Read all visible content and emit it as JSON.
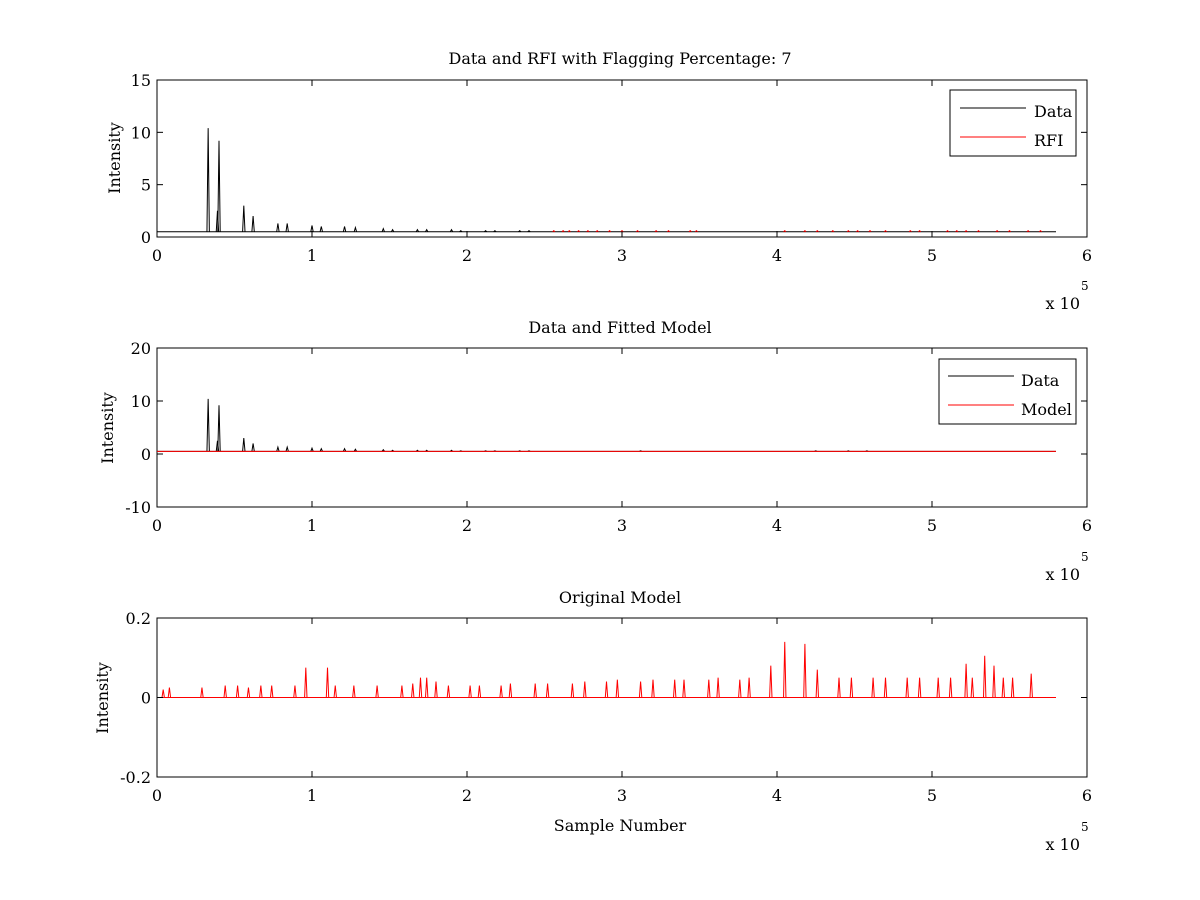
{
  "chart_data": [
    {
      "type": "line",
      "title": "Data and RFI with Flagging Percentage: 7",
      "xlabel": "",
      "ylabel": "Intensity",
      "xlim": [
        0,
        6
      ],
      "ylim": [
        0,
        15
      ],
      "xticks": [
        "0",
        "1",
        "2",
        "3",
        "4",
        "5",
        "6"
      ],
      "yticks": [
        "0",
        "5",
        "10",
        "15"
      ],
      "x_exponent": {
        "base": "x 10",
        "power": "5"
      },
      "legend": {
        "placement": "top-right",
        "entries": [
          "Data",
          "RFI"
        ]
      },
      "colors": {
        "Data": "#000000",
        "RFI": "#ff0000"
      },
      "series": [
        {
          "name": "Data",
          "baseline": 0.5,
          "peaks": [
            [
              0.33,
              10.4
            ],
            [
              0.4,
              9.2
            ],
            [
              0.39,
              2.5
            ],
            [
              0.56,
              3.0
            ],
            [
              0.62,
              2.0
            ],
            [
              0.78,
              1.3
            ],
            [
              0.84,
              1.3
            ],
            [
              1.0,
              1.1
            ],
            [
              1.06,
              1.0
            ],
            [
              1.21,
              1.0
            ],
            [
              1.28,
              0.9
            ],
            [
              1.46,
              0.8
            ],
            [
              1.52,
              0.7
            ],
            [
              1.68,
              0.7
            ],
            [
              1.74,
              0.7
            ],
            [
              1.9,
              0.7
            ],
            [
              1.96,
              0.6
            ],
            [
              2.12,
              0.6
            ],
            [
              2.18,
              0.6
            ],
            [
              2.34,
              0.6
            ],
            [
              2.4,
              0.6
            ]
          ]
        },
        {
          "name": "RFI",
          "baseline": 0.5,
          "peaks": [
            [
              2.56,
              0.6
            ],
            [
              2.62,
              0.6
            ],
            [
              2.66,
              0.6
            ],
            [
              2.72,
              0.6
            ],
            [
              2.78,
              0.6
            ],
            [
              2.84,
              0.6
            ],
            [
              2.92,
              0.6
            ],
            [
              3.0,
              0.6
            ],
            [
              3.1,
              0.6
            ],
            [
              3.22,
              0.6
            ],
            [
              3.3,
              0.6
            ],
            [
              3.44,
              0.6
            ],
            [
              3.48,
              0.6
            ],
            [
              4.05,
              0.6
            ],
            [
              4.18,
              0.6
            ],
            [
              4.26,
              0.6
            ],
            [
              4.36,
              0.6
            ],
            [
              4.46,
              0.6
            ],
            [
              4.52,
              0.6
            ],
            [
              4.6,
              0.6
            ],
            [
              4.7,
              0.6
            ],
            [
              4.86,
              0.6
            ],
            [
              4.92,
              0.6
            ],
            [
              5.1,
              0.6
            ],
            [
              5.16,
              0.6
            ],
            [
              5.22,
              0.6
            ],
            [
              5.3,
              0.6
            ],
            [
              5.42,
              0.6
            ],
            [
              5.5,
              0.6
            ],
            [
              5.62,
              0.6
            ],
            [
              5.7,
              0.6
            ]
          ]
        }
      ]
    },
    {
      "type": "line",
      "title": "Data and Fitted Model",
      "xlabel": "",
      "ylabel": "Intensity",
      "xlim": [
        0,
        6
      ],
      "ylim": [
        -10,
        20
      ],
      "xticks": [
        "0",
        "1",
        "2",
        "3",
        "4",
        "5",
        "6"
      ],
      "yticks": [
        "-10",
        "0",
        "10",
        "20"
      ],
      "x_exponent": {
        "base": "x 10",
        "power": "5"
      },
      "legend": {
        "placement": "top-right",
        "entries": [
          "Data",
          "Model"
        ]
      },
      "colors": {
        "Data": "#000000",
        "Model": "#ff0000"
      },
      "series": [
        {
          "name": "Data",
          "baseline": 0.5,
          "peaks": [
            [
              0.33,
              10.4
            ],
            [
              0.4,
              9.2
            ],
            [
              0.39,
              2.5
            ],
            [
              0.56,
              3.0
            ],
            [
              0.62,
              2.0
            ],
            [
              0.78,
              1.3
            ],
            [
              0.84,
              1.3
            ],
            [
              1.0,
              1.1
            ],
            [
              1.06,
              1.0
            ],
            [
              1.21,
              1.0
            ],
            [
              1.28,
              0.9
            ],
            [
              1.46,
              0.8
            ],
            [
              1.52,
              0.7
            ],
            [
              1.68,
              0.7
            ],
            [
              1.74,
              0.7
            ],
            [
              1.9,
              0.7
            ],
            [
              1.96,
              0.6
            ],
            [
              2.12,
              0.6
            ],
            [
              2.18,
              0.6
            ],
            [
              2.34,
              0.6
            ],
            [
              2.4,
              0.6
            ],
            [
              3.12,
              0.6
            ],
            [
              4.25,
              0.6
            ],
            [
              4.46,
              0.6
            ],
            [
              4.58,
              0.6
            ]
          ]
        },
        {
          "name": "Model",
          "baseline": 0.5,
          "peaks": []
        }
      ]
    },
    {
      "type": "line",
      "title": "Original Model",
      "xlabel": "Sample Number",
      "ylabel": "Intensity",
      "xlim": [
        0,
        6
      ],
      "ylim": [
        -0.2,
        0.2
      ],
      "xticks": [
        "0",
        "1",
        "2",
        "3",
        "4",
        "5",
        "6"
      ],
      "yticks": [
        "-0.2",
        "0",
        "0.2"
      ],
      "x_exponent": {
        "base": "x 10",
        "power": "5"
      },
      "colors": {
        "Model": "#ff0000"
      },
      "series": [
        {
          "name": "",
          "baseline": 0,
          "peaks": [
            [
              0.04,
              0.02
            ],
            [
              0.08,
              0.025
            ],
            [
              0.29,
              0.025
            ],
            [
              0.44,
              0.03
            ],
            [
              0.52,
              0.03
            ],
            [
              0.59,
              0.025
            ],
            [
              0.67,
              0.03
            ],
            [
              0.74,
              0.03
            ],
            [
              0.89,
              0.03
            ],
            [
              0.96,
              0.075
            ],
            [
              1.1,
              0.075
            ],
            [
              1.15,
              0.03
            ],
            [
              1.27,
              0.03
            ],
            [
              1.42,
              0.03
            ],
            [
              1.58,
              0.03
            ],
            [
              1.65,
              0.035
            ],
            [
              1.7,
              0.05
            ],
            [
              1.74,
              0.05
            ],
            [
              1.8,
              0.04
            ],
            [
              1.88,
              0.03
            ],
            [
              2.02,
              0.03
            ],
            [
              2.08,
              0.03
            ],
            [
              2.22,
              0.03
            ],
            [
              2.28,
              0.035
            ],
            [
              2.44,
              0.035
            ],
            [
              2.52,
              0.035
            ],
            [
              2.68,
              0.035
            ],
            [
              2.76,
              0.04
            ],
            [
              2.9,
              0.04
            ],
            [
              2.97,
              0.045
            ],
            [
              3.12,
              0.04
            ],
            [
              3.2,
              0.045
            ],
            [
              3.34,
              0.045
            ],
            [
              3.4,
              0.045
            ],
            [
              3.56,
              0.045
            ],
            [
              3.62,
              0.05
            ],
            [
              3.76,
              0.045
            ],
            [
              3.82,
              0.05
            ],
            [
              3.96,
              0.08
            ],
            [
              4.05,
              0.14
            ],
            [
              4.18,
              0.135
            ],
            [
              4.26,
              0.07
            ],
            [
              4.4,
              0.05
            ],
            [
              4.48,
              0.05
            ],
            [
              4.62,
              0.05
            ],
            [
              4.7,
              0.05
            ],
            [
              4.84,
              0.05
            ],
            [
              4.92,
              0.05
            ],
            [
              5.04,
              0.05
            ],
            [
              5.12,
              0.05
            ],
            [
              5.22,
              0.085
            ],
            [
              5.26,
              0.05
            ],
            [
              5.34,
              0.105
            ],
            [
              5.4,
              0.08
            ],
            [
              5.46,
              0.05
            ],
            [
              5.52,
              0.05
            ],
            [
              5.64,
              0.06
            ]
          ]
        }
      ]
    }
  ]
}
